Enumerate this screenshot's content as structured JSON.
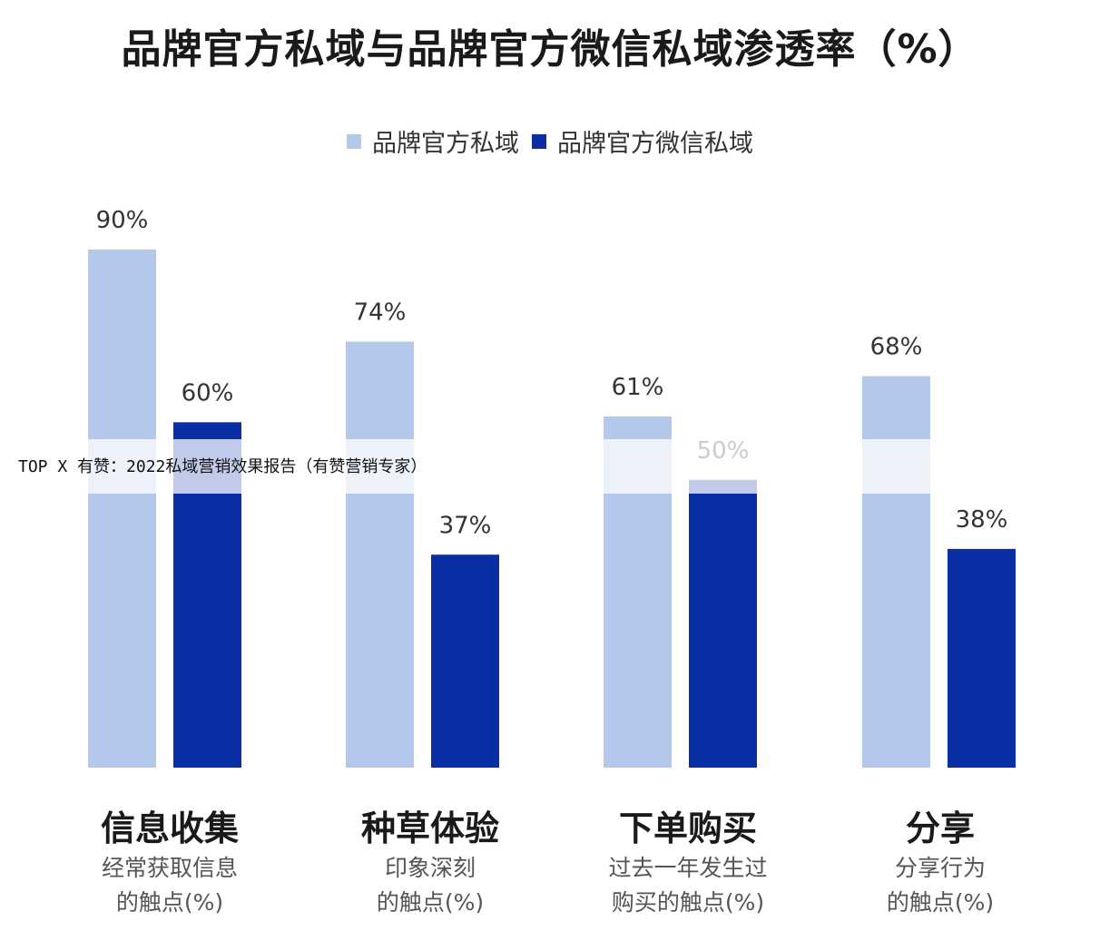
{
  "chart_data": {
    "type": "bar",
    "title": "品牌官方私域与品牌官方微信私域渗透率（%）",
    "categories": [
      "信息收集",
      "种草体验",
      "下单购买",
      "分享"
    ],
    "subtitles": [
      [
        "经常获取信息",
        "的触点(%)"
      ],
      [
        "印象深刻",
        "的触点(%)"
      ],
      [
        "过去一年发生过",
        "购买的触点(%)"
      ],
      [
        "分享行为",
        "的触点(%)"
      ]
    ],
    "series": [
      {
        "name": "品牌官方私域",
        "values": [
          90,
          74,
          61,
          68
        ],
        "labels": [
          "90%",
          "74%",
          "61%",
          "68%"
        ],
        "color": "#b3c8ea"
      },
      {
        "name": "品牌官方微信私域",
        "values": [
          60,
          37,
          50,
          38
        ],
        "labels": [
          "60%",
          "37%",
          "50%",
          "38%"
        ],
        "color": "#0a2ea3"
      }
    ],
    "ylim": [
      0,
      100
    ],
    "grid": false,
    "legend_position": "top"
  },
  "watermark": "TOP X 有赞：2022私域营销效果报告（有赞营销专家）"
}
